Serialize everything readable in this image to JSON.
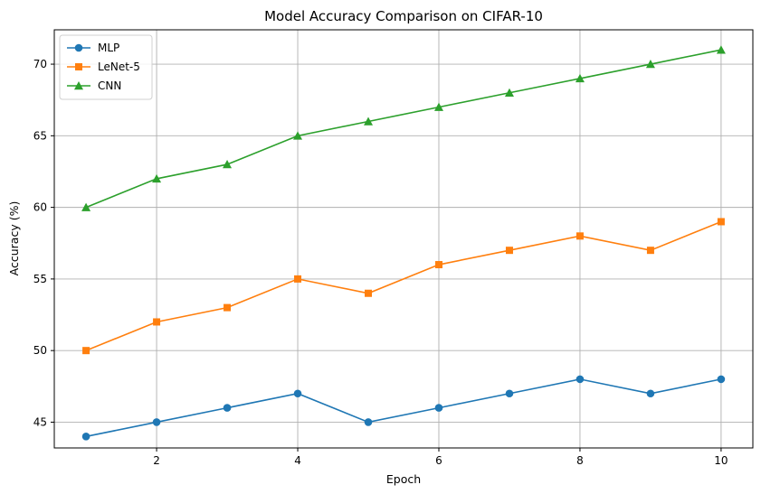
{
  "chart_data": {
    "type": "line",
    "title": "Model Accuracy Comparison on CIFAR-10",
    "xlabel": "Epoch",
    "ylabel": "Accuracy (%)",
    "x": [
      1,
      2,
      3,
      4,
      5,
      6,
      7,
      8,
      9,
      10
    ],
    "xlim": [
      0.55,
      10.45
    ],
    "ylim": [
      43.2,
      72.4
    ],
    "xticks": [
      2,
      4,
      6,
      8,
      10
    ],
    "yticks": [
      45,
      50,
      55,
      60,
      65,
      70
    ],
    "grid": true,
    "legend_position": "top-left",
    "series": [
      {
        "name": "MLP",
        "color": "#1f77b4",
        "marker": "circle",
        "values": [
          44,
          45,
          46,
          47,
          45,
          46,
          47,
          48,
          47,
          48
        ]
      },
      {
        "name": "LeNet-5",
        "color": "#ff7f0e",
        "marker": "square",
        "values": [
          50,
          52,
          53,
          55,
          54,
          56,
          57,
          58,
          57,
          59
        ]
      },
      {
        "name": "CNN",
        "color": "#2ca02c",
        "marker": "triangle",
        "values": [
          60,
          62,
          63,
          65,
          66,
          67,
          68,
          69,
          70,
          71
        ]
      }
    ]
  }
}
